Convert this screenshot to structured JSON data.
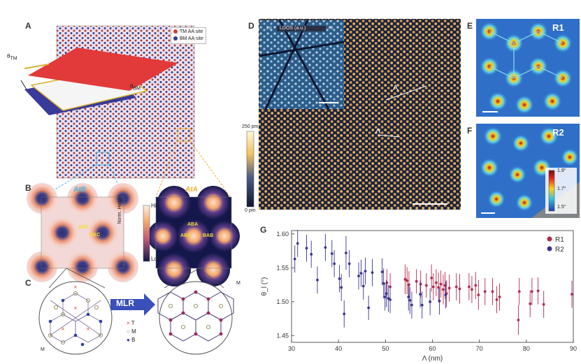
{
  "figure": {
    "panels": {
      "A": "A",
      "B": "B",
      "C": "C",
      "D": "D",
      "E": "E",
      "F": "F",
      "G": "G"
    },
    "panel_A": {
      "legend": [
        "TM AA site",
        "BM AA site"
      ],
      "legend_colors": [
        "#d93a2b",
        "#2f3fa0"
      ],
      "theta_tm": "θ",
      "theta_tm_sub": "TM",
      "theta_bm": "θ",
      "theta_bm_sub": "BM"
    },
    "panel_B": {
      "left_title": "AtB",
      "right_title": "AtA",
      "left_title_color": "#4ab6e6",
      "right_title_color": "#f0b030",
      "left_labels": [
        "ABC",
        "BAC"
      ],
      "right_labels": [
        "ABA",
        "ABA",
        "BAB"
      ],
      "colorbar_hi": "Hi",
      "colorbar_lo": "Lo",
      "colorbar_title": "Norm. Height"
    },
    "panel_C": {
      "arrow_label": "MLR",
      "legend": [
        {
          "symbol": "×",
          "label": "T",
          "color": "#d93a2b"
        },
        {
          "symbol": "○",
          "label": "M",
          "color": "#8a8a55"
        },
        {
          "symbol": "●",
          "label": "B",
          "color": "#2f3fa0"
        }
      ],
      "edge_label_left": "M",
      "edge_label_right": "M"
    },
    "panel_D": {
      "colorbar_top": "250 pm",
      "colorbar_bottom": "0 pm",
      "inset_lo": "Lo",
      "inset_title": "LDOS (a.u.)",
      "inset_hi": "Hi",
      "lambda_symbol": "Λ"
    },
    "panel_E": {
      "label": "R1"
    },
    "panel_F": {
      "label": "R2",
      "colorbar_ticks": [
        "1.9°",
        "1.7°",
        "1.5°"
      ]
    }
  },
  "chart_data": {
    "type": "scatter",
    "panel": "G",
    "xlabel": "Λ (nm)",
    "ylabel": "θ_l (°)",
    "xlim": [
      30,
      90
    ],
    "ylim": [
      1.44,
      1.605
    ],
    "xticks": [
      30,
      40,
      50,
      60,
      70,
      80,
      90
    ],
    "yticks": [
      1.45,
      1.5,
      1.55,
      1.6
    ],
    "legend_placement": "top-right",
    "grid": false,
    "series": [
      {
        "name": "R1",
        "color": "#b5284a",
        "points": [
          [
            50.3,
            1.528,
            0.02
          ],
          [
            51.0,
            1.522,
            0.02
          ],
          [
            54.2,
            1.533,
            0.022
          ],
          [
            54.6,
            1.531,
            0.02
          ],
          [
            55.0,
            1.525,
            0.02
          ],
          [
            56.6,
            1.53,
            0.018
          ],
          [
            57.5,
            1.526,
            0.02
          ],
          [
            58.7,
            1.524,
            0.018
          ],
          [
            59.8,
            1.535,
            0.02
          ],
          [
            60.2,
            1.522,
            0.02
          ],
          [
            60.8,
            1.528,
            0.02
          ],
          [
            61.3,
            1.521,
            0.022
          ],
          [
            61.8,
            1.526,
            0.02
          ],
          [
            62.3,
            1.518,
            0.022
          ],
          [
            62.7,
            1.524,
            0.02
          ],
          [
            63.0,
            1.512,
            0.02
          ],
          [
            63.6,
            1.52,
            0.02
          ],
          [
            65.1,
            1.522,
            0.02
          ],
          [
            65.8,
            1.519,
            0.022
          ],
          [
            67.8,
            1.522,
            0.02
          ],
          [
            68.4,
            1.518,
            0.02
          ],
          [
            69.2,
            1.524,
            0.02
          ],
          [
            69.8,
            1.51,
            0.022
          ],
          [
            71.2,
            1.515,
            0.02
          ],
          [
            72.8,
            1.515,
            0.02
          ],
          [
            73.7,
            1.503,
            0.02
          ],
          [
            74.3,
            1.507,
            0.02
          ],
          [
            78.3,
            1.473,
            0.022
          ],
          [
            78.5,
            1.515,
            0.02
          ],
          [
            80.8,
            1.497,
            0.02
          ],
          [
            81.2,
            1.515,
            0.02
          ],
          [
            82.5,
            1.516,
            0.02
          ],
          [
            83.7,
            1.496,
            0.02
          ],
          [
            89.7,
            1.511,
            0.02
          ]
        ]
      },
      {
        "name": "R2",
        "color": "#3a3590",
        "points": [
          [
            30.7,
            1.563,
            0.02
          ],
          [
            31.3,
            1.586,
            0.02
          ],
          [
            33.2,
            1.579,
            0.02
          ],
          [
            34.2,
            1.57,
            0.02
          ],
          [
            35.5,
            1.532,
            0.02
          ],
          [
            37.2,
            1.58,
            0.02
          ],
          [
            38.6,
            1.571,
            0.02
          ],
          [
            39.1,
            1.556,
            0.02
          ],
          [
            40.2,
            1.534,
            0.02
          ],
          [
            40.6,
            1.521,
            0.02
          ],
          [
            41.6,
            1.572,
            0.025
          ],
          [
            41.2,
            1.482,
            0.02
          ],
          [
            42.3,
            1.556,
            0.02
          ],
          [
            44.3,
            1.538,
            0.02
          ],
          [
            44.8,
            1.542,
            0.02
          ],
          [
            45.3,
            1.523,
            0.02
          ],
          [
            45.7,
            1.545,
            0.02
          ],
          [
            46.4,
            1.491,
            0.018
          ],
          [
            47.2,
            1.543,
            0.02
          ],
          [
            49.3,
            1.544,
            0.02
          ],
          [
            49.6,
            1.527,
            0.022
          ],
          [
            49.9,
            1.507,
            0.02
          ],
          [
            50.2,
            1.512,
            0.02
          ],
          [
            50.6,
            1.505,
            0.02
          ],
          [
            51.0,
            1.503,
            0.02
          ],
          [
            54.9,
            1.507,
            0.02
          ],
          [
            55.2,
            1.502,
            0.02
          ],
          [
            55.6,
            1.495,
            0.02
          ],
          [
            57.4,
            1.511,
            0.02
          ],
          [
            57.8,
            1.495,
            0.02
          ],
          [
            59.5,
            1.5,
            0.02
          ],
          [
            61.5,
            1.501,
            0.02
          ],
          [
            62.8,
            1.51,
            0.02
          ]
        ]
      }
    ]
  }
}
